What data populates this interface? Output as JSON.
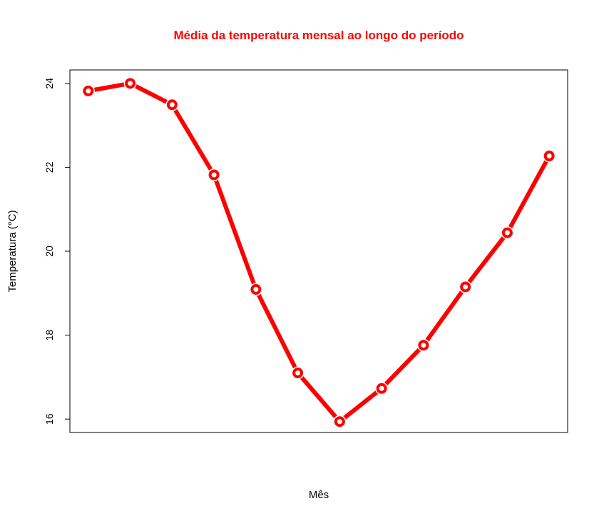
{
  "chart_data": {
    "type": "line",
    "title": "Média da temperatura mensal ao longo do período",
    "xlabel": "Mês",
    "ylabel": "Temperatura (°C)",
    "x": [
      1,
      2,
      3,
      4,
      5,
      6,
      7,
      8,
      9,
      10,
      11,
      12
    ],
    "series": [
      {
        "values": [
          23.82,
          24.0,
          23.49,
          21.82,
          19.09,
          17.1,
          15.94,
          16.73,
          17.76,
          19.15,
          20.44,
          22.27
        ]
      }
    ],
    "ylim": [
      15.68,
      24.32
    ],
    "yticks": [
      16,
      18,
      20,
      22,
      24
    ],
    "grid": false,
    "color": "#ff0000"
  }
}
